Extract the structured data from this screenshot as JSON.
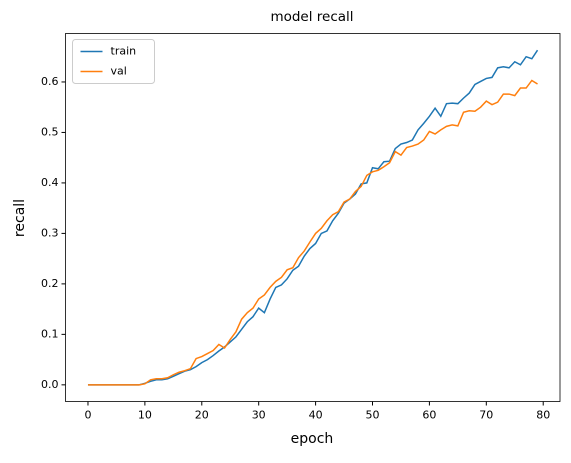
{
  "chart_data": {
    "type": "line",
    "title": "model recall",
    "xlabel": "epoch",
    "ylabel": "recall",
    "x": [
      0,
      1,
      2,
      3,
      4,
      5,
      6,
      7,
      8,
      9,
      10,
      11,
      12,
      13,
      14,
      15,
      16,
      17,
      18,
      19,
      20,
      21,
      22,
      23,
      24,
      25,
      26,
      27,
      28,
      29,
      30,
      31,
      32,
      33,
      34,
      35,
      36,
      37,
      38,
      39,
      40,
      41,
      42,
      43,
      44,
      45,
      46,
      47,
      48,
      49,
      50,
      51,
      52,
      53,
      54,
      55,
      56,
      57,
      58,
      59,
      60,
      61,
      62,
      63,
      64,
      65,
      66,
      67,
      68,
      69,
      70,
      71,
      72,
      73,
      74,
      75,
      76,
      77,
      78,
      79
    ],
    "series": [
      {
        "name": "train",
        "color": "#1f77b4",
        "values": [
          0,
          0,
          0,
          0,
          0,
          0,
          0,
          0,
          0,
          0,
          0.003,
          0.007,
          0.01,
          0.01,
          0.012,
          0.017,
          0.022,
          0.027,
          0.03,
          0.036,
          0.044,
          0.05,
          0.058,
          0.067,
          0.075,
          0.085,
          0.095,
          0.11,
          0.125,
          0.135,
          0.152,
          0.143,
          0.17,
          0.193,
          0.198,
          0.21,
          0.227,
          0.235,
          0.255,
          0.27,
          0.28,
          0.3,
          0.305,
          0.325,
          0.34,
          0.36,
          0.368,
          0.378,
          0.398,
          0.4,
          0.43,
          0.428,
          0.442,
          0.443,
          0.468,
          0.477,
          0.48,
          0.485,
          0.505,
          0.518,
          0.532,
          0.548,
          0.532,
          0.557,
          0.558,
          0.557,
          0.568,
          0.578,
          0.595,
          0.601,
          0.607,
          0.609,
          0.628,
          0.63,
          0.628,
          0.64,
          0.634,
          0.65,
          0.646,
          0.663
        ]
      },
      {
        "name": "val",
        "color": "#ff7f0e",
        "values": [
          0,
          0,
          0,
          0,
          0,
          0,
          0,
          0,
          0,
          0,
          0.002,
          0.01,
          0.012,
          0.012,
          0.014,
          0.02,
          0.025,
          0.028,
          0.032,
          0.052,
          0.056,
          0.062,
          0.068,
          0.08,
          0.073,
          0.09,
          0.105,
          0.13,
          0.143,
          0.152,
          0.17,
          0.178,
          0.193,
          0.205,
          0.213,
          0.228,
          0.232,
          0.252,
          0.265,
          0.283,
          0.3,
          0.31,
          0.325,
          0.337,
          0.343,
          0.362,
          0.368,
          0.383,
          0.393,
          0.415,
          0.422,
          0.425,
          0.432,
          0.44,
          0.462,
          0.455,
          0.47,
          0.473,
          0.477,
          0.485,
          0.502,
          0.497,
          0.505,
          0.512,
          0.515,
          0.513,
          0.54,
          0.543,
          0.542,
          0.55,
          0.562,
          0.555,
          0.56,
          0.576,
          0.576,
          0.573,
          0.588,
          0.588,
          0.603,
          0.596
        ]
      }
    ],
    "xlim": [
      -3.95,
      82.95
    ],
    "xticks": [
      0,
      10,
      20,
      30,
      40,
      50,
      60,
      70,
      80
    ],
    "ylim": [
      -0.033,
      0.696
    ],
    "yticks": [
      {
        "value": 0,
        "label": "0.0"
      },
      0.1,
      0.2,
      0.3,
      0.4,
      0.5,
      0.6
    ],
    "legend": "upper left",
    "grid": false
  }
}
